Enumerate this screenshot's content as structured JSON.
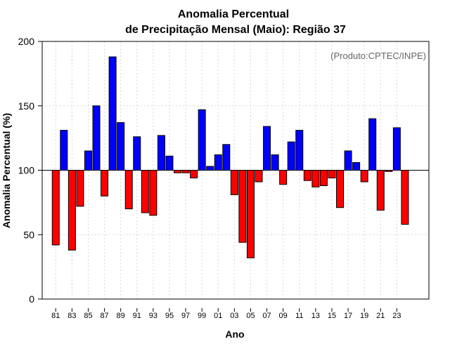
{
  "chart_data": {
    "type": "bar",
    "title_line1": "Anomalia Percentual",
    "title_line2": "de Precipitação Mensal (Maio): Região 37",
    "xlabel": "Ano",
    "ylabel": "Anomalia Percentual (%)",
    "source": "(Produto:CPTEC/INPE)",
    "baseline": 100,
    "ylim": [
      0,
      200
    ],
    "yticks": [
      0,
      50,
      100,
      150,
      200
    ],
    "grid": true,
    "colors": {
      "above": "#0000ff",
      "below": "#ff0000"
    },
    "tick_labels": [
      "81",
      "83",
      "85",
      "87",
      "89",
      "91",
      "93",
      "95",
      "97",
      "99",
      "01",
      "03",
      "05",
      "07",
      "09",
      "11",
      "13",
      "15",
      "17",
      "19",
      "21",
      "23"
    ],
    "categories": [
      1981,
      1982,
      1983,
      1984,
      1985,
      1986,
      1987,
      1988,
      1989,
      1990,
      1991,
      1992,
      1993,
      1994,
      1995,
      1996,
      1997,
      1998,
      1999,
      2000,
      2001,
      2002,
      2003,
      2004,
      2005,
      2006,
      2007,
      2008,
      2009,
      2010,
      2011,
      2012,
      2013,
      2014,
      2015,
      2016,
      2017,
      2018,
      2019,
      2020,
      2021,
      2022,
      2023,
      2024
    ],
    "values": [
      42,
      131,
      38,
      72,
      115,
      150,
      80,
      188,
      137,
      70,
      126,
      67,
      65,
      127,
      111,
      98,
      98,
      94,
      147,
      103,
      112,
      120,
      81,
      44,
      32,
      91,
      134,
      112,
      89,
      122,
      131,
      92,
      87,
      88,
      94,
      71,
      115,
      106,
      91,
      140,
      69,
      99,
      133,
      58
    ]
  }
}
